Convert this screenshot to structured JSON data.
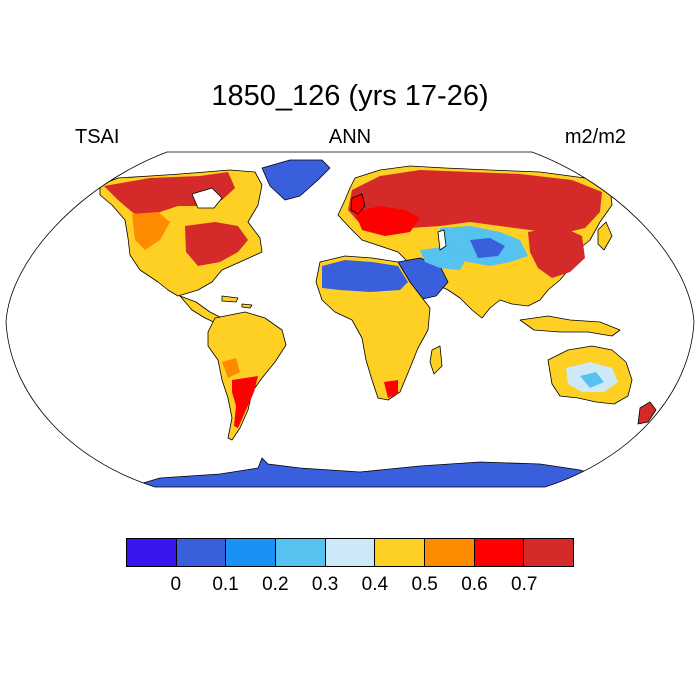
{
  "title": "1850_126 (yrs 17-26)",
  "subtitle": {
    "left": "TSAI",
    "center": "ANN",
    "right": "m2/m2"
  },
  "colorbar": {
    "colors": [
      "#3a15f0",
      "#3a5fdc",
      "#1991f5",
      "#55c2f0",
      "#cde9f7",
      "#fdd023",
      "#fe8b00",
      "#fe0000",
      "#d42a2a"
    ],
    "labels": [
      "0",
      "0.1",
      "0.2",
      "0.3",
      "0.4",
      "0.5",
      "0.6",
      "0.7"
    ]
  },
  "map": {
    "projection": "Robinson",
    "ocean_color": "#ffffff",
    "region_values": [
      {
        "region": "Canada / Alaska",
        "value_range": "0.5-0.7+"
      },
      {
        "region": "Greenland",
        "value_range": "0.1-0.2"
      },
      {
        "region": "Eastern North America",
        "value_range": "0.6-0.7+"
      },
      {
        "region": "Western USA / Mexico",
        "value_range": "0.4-0.5"
      },
      {
        "region": "South America",
        "value_range": "0.4-0.6"
      },
      {
        "region": "Southern South America",
        "value_range": "0.5-0.7+"
      },
      {
        "region": "Sahara / Arabia",
        "value_range": "0.1-0.2"
      },
      {
        "region": "Sub-Saharan Africa",
        "value_range": "0.4-0.5"
      },
      {
        "region": "Europe / Russia",
        "value_range": "0.6-0.7+"
      },
      {
        "region": "Central Asia / Tibet",
        "value_range": "0.1-0.4"
      },
      {
        "region": "East Asia",
        "value_range": "0.6-0.7+"
      },
      {
        "region": "India / SE Asia",
        "value_range": "0.4-0.5"
      },
      {
        "region": "Central Australia",
        "value_range": "0.2-0.4"
      },
      {
        "region": "Antarctica",
        "value_range": "0.1-0.2"
      }
    ]
  }
}
